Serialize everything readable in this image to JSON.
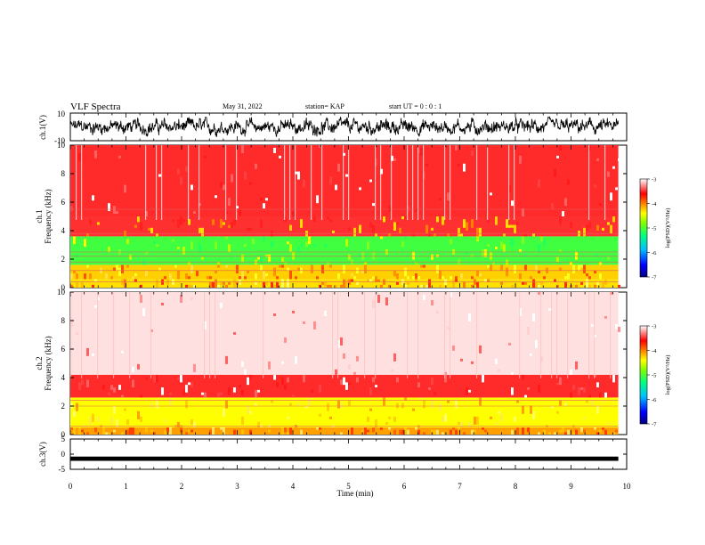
{
  "header": {
    "title": "VLF Spectra",
    "date": "May 31, 2022",
    "station": "station= KAP",
    "start": "start  UT =   0 : 0  : 1"
  },
  "chart_data": [
    {
      "type": "line",
      "panel": "ch1-waveform",
      "ylabel": "ch.1(V)",
      "ylim": [
        -10,
        10
      ],
      "yticks": [
        "10",
        "-10"
      ],
      "xlim": [
        0,
        10
      ],
      "data_end_min": 9.85,
      "series": [
        {
          "color": "#000000",
          "amplitude_range": [
            -7,
            7
          ]
        }
      ]
    },
    {
      "type": "heatmap",
      "panel": "ch1-spectrogram",
      "ylabel": "ch.1\nFrequency (kHz)",
      "ylim": [
        0,
        10
      ],
      "yticks": [
        "0",
        "2",
        "4",
        "6",
        "8",
        "10"
      ],
      "xlim": [
        0,
        10
      ],
      "data_end_min": 9.85,
      "bands_khz": [
        {
          "range": [
            0,
            0.6
          ],
          "level": "yellow-orange"
        },
        {
          "range": [
            0.6,
            1.6
          ],
          "level": "orange-yellow"
        },
        {
          "range": [
            1.6,
            3.6
          ],
          "level": "green-yellow"
        },
        {
          "range": [
            3.6,
            5.0
          ],
          "level": "yellow-red"
        },
        {
          "range": [
            5.0,
            10.0
          ],
          "level": "red"
        }
      ],
      "lines_khz": [
        0.4,
        1.2,
        1.8,
        2.2,
        2.5,
        3.8,
        5.5
      ],
      "colorbar": {
        "label": "log(PSD)(V²/Hz)",
        "min": -7,
        "max": -3,
        "ticks": [
          "-3",
          "-4",
          "-5",
          "-6",
          "-7"
        ]
      }
    },
    {
      "type": "heatmap",
      "panel": "ch2-spectrogram",
      "ylabel": "ch.2\nFrequency (kHz)",
      "ylim": [
        0,
        10
      ],
      "yticks": [
        "0",
        "2",
        "4",
        "6",
        "8",
        "10"
      ],
      "xlim": [
        0,
        10
      ],
      "data_end_min": 9.85,
      "bands_khz": [
        {
          "range": [
            0,
            0.5
          ],
          "level": "orange"
        },
        {
          "range": [
            0.5,
            2.6
          ],
          "level": "yellow"
        },
        {
          "range": [
            2.6,
            4.2
          ],
          "level": "red"
        },
        {
          "range": [
            4.2,
            10.0
          ],
          "level": "pink-white"
        }
      ],
      "lines_khz": [
        0.6,
        2.0,
        2.4
      ],
      "colorbar": {
        "label": "log(PSD)(V²/Hz)",
        "min": -7,
        "max": -3,
        "ticks": [
          "-3",
          "-4",
          "-5",
          "-6",
          "-7"
        ]
      }
    },
    {
      "type": "line",
      "panel": "ch3-waveform",
      "ylabel": "ch.3(V)",
      "ylim": [
        -5,
        5
      ],
      "yticks": [
        "5",
        "0",
        "-5"
      ],
      "xlim": [
        0,
        10
      ],
      "xticks": [
        "0",
        "1",
        "2",
        "3",
        "4",
        "5",
        "6",
        "7",
        "8",
        "9",
        "10"
      ],
      "xlabel": "Time (min)",
      "data_end_min": 9.85,
      "series": [
        {
          "color": "#000000",
          "amplitude_range": [
            -2.2,
            -0.8
          ]
        }
      ]
    }
  ]
}
